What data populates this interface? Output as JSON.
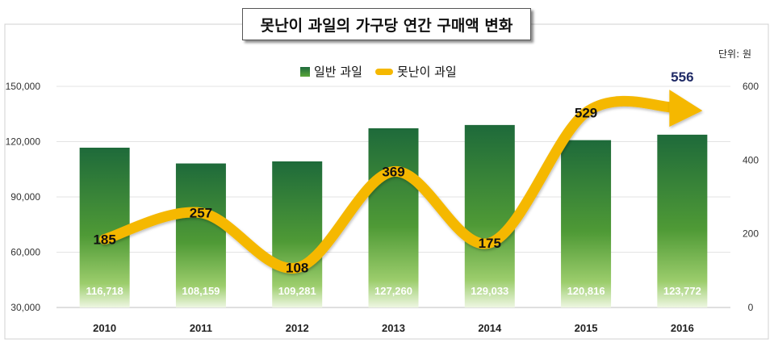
{
  "title": "못난이 과일의 가구당 연간 구매액 변화",
  "unit_label": "단위: 원",
  "colors": {
    "bar_top": "#1e6a3a",
    "bar_bottom": "#e8f2d8",
    "line": "#f5b800",
    "arrow_label": "#1f2a66"
  },
  "chart_data": {
    "type": "bar",
    "categories": [
      "2010",
      "2011",
      "2012",
      "2013",
      "2014",
      "2015",
      "2016"
    ],
    "series": [
      {
        "name": "일반 과일",
        "type": "bar",
        "axis": "left",
        "values": [
          116718,
          108159,
          109281,
          127260,
          129033,
          120816,
          123772
        ],
        "labels": [
          "116,718",
          "108,159",
          "109,281",
          "127,260",
          "129,033",
          "120,816",
          "123,772"
        ]
      },
      {
        "name": "못난이 과일",
        "type": "line",
        "axis": "right",
        "values": [
          185,
          257,
          108,
          369,
          175,
          529,
          556
        ],
        "labels": [
          "185",
          "257",
          "108",
          "369",
          "175",
          "529",
          "556"
        ]
      }
    ],
    "y_left": {
      "min": 30000,
      "max": 150000,
      "ticks": [
        30000,
        60000,
        90000,
        120000,
        150000
      ],
      "tick_labels": [
        "30,000",
        "60,000",
        "90,000",
        "120,000",
        "150,000"
      ]
    },
    "y_right": {
      "min": 0,
      "max": 600,
      "ticks": [
        0,
        200,
        400,
        600
      ],
      "tick_labels": [
        "0",
        "200",
        "400",
        "600"
      ]
    },
    "grid": true,
    "legend_position": "top-center"
  }
}
